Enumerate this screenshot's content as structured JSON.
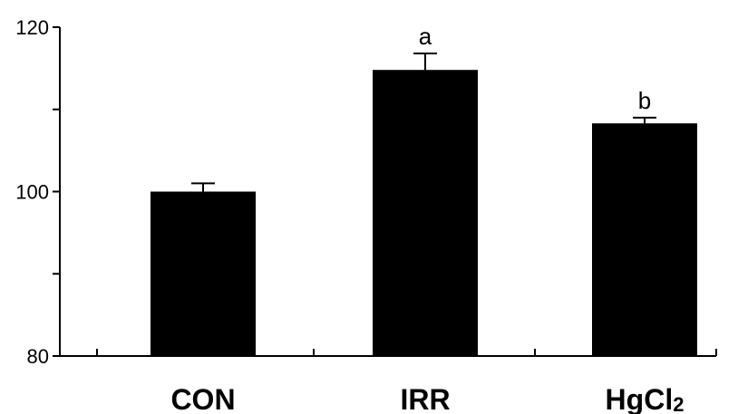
{
  "chart_data": {
    "type": "bar",
    "categories": [
      "CON",
      "IRR",
      "HgCl2"
    ],
    "category_display": [
      {
        "main": "CON",
        "sub": ""
      },
      {
        "main": "IRR",
        "sub": ""
      },
      {
        "main": "HgCl",
        "sub": "2"
      }
    ],
    "values": [
      100,
      114.8,
      108.3
    ],
    "errors": [
      1.0,
      2.0,
      0.7
    ],
    "annotations": [
      "",
      "a",
      "b"
    ],
    "ylim": [
      80,
      120
    ],
    "yticks": [
      80,
      90,
      100,
      110,
      120
    ],
    "ytick_labels": [
      "80",
      "",
      "100",
      "",
      "120"
    ],
    "title": "",
    "xlabel": "",
    "ylabel": "",
    "bar_color": "#000000",
    "grid": false
  }
}
